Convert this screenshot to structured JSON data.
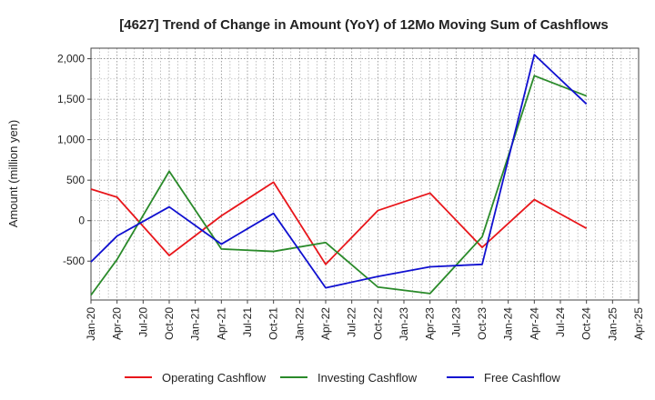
{
  "chart_data": {
    "type": "line",
    "title": "[4627]  Trend of Change in Amount (YoY) of 12Mo Moving Sum of Cashflows",
    "xlabel": "",
    "ylabel": "Amount (million yen)",
    "categories": [
      "Jan-20",
      "Apr-20",
      "Jul-20",
      "Oct-20",
      "Jan-21",
      "Apr-21",
      "Jul-21",
      "Oct-21",
      "Jan-22",
      "Apr-22",
      "Jul-22",
      "Oct-22",
      "Jan-23",
      "Apr-23",
      "Jul-23",
      "Oct-23",
      "Jan-24",
      "Apr-24",
      "Jul-24",
      "Oct-24",
      "Jan-25",
      "Apr-25"
    ],
    "ylim": [
      -980,
      2130
    ],
    "yticks": [
      -500,
      0,
      500,
      1000,
      1500,
      2000
    ],
    "ytick_labels": [
      "-500",
      "0",
      "500",
      "1,000",
      "1,500",
      "2,000"
    ],
    "grid": true,
    "legend_position": "bottom",
    "series": [
      {
        "name": "Operating Cashflow",
        "color": "#e8161b",
        "values": [
          390,
          290,
          null,
          -430,
          null,
          60,
          null,
          475,
          null,
          -540,
          null,
          125,
          null,
          340,
          null,
          -330,
          null,
          260,
          null,
          -95,
          null,
          null
        ]
      },
      {
        "name": "Investing Cashflow",
        "color": "#2a8a2a",
        "values": [
          -920,
          -480,
          null,
          610,
          null,
          -350,
          null,
          -380,
          null,
          -270,
          null,
          -820,
          null,
          -900,
          null,
          -200,
          null,
          1790,
          null,
          1540,
          null,
          null
        ]
      },
      {
        "name": "Free Cashflow",
        "color": "#1010d0",
        "values": [
          -510,
          -190,
          null,
          170,
          null,
          -290,
          null,
          90,
          null,
          -830,
          null,
          -690,
          null,
          -570,
          null,
          -540,
          null,
          2050,
          null,
          1440,
          null,
          null
        ]
      }
    ]
  }
}
